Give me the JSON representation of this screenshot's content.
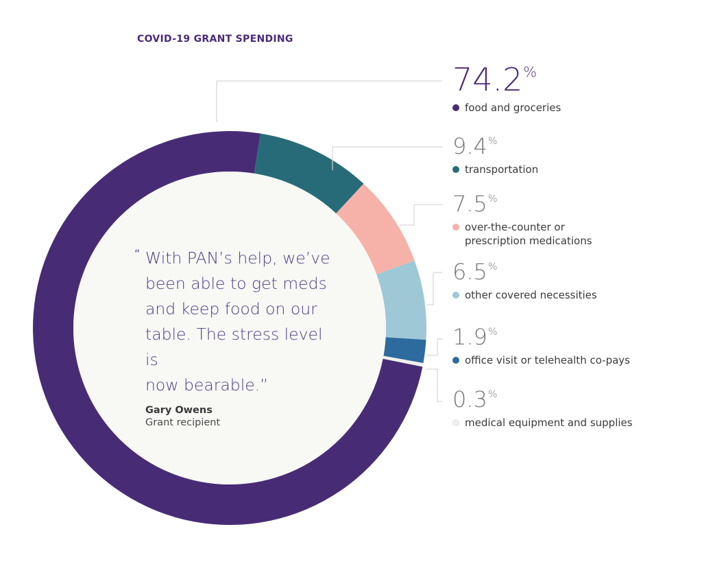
{
  "chart_data": {
    "type": "pie",
    "variant": "donut",
    "title": "COVID-19 GRANT SPENDING",
    "start_angle_deg": 9,
    "direction": "clockwise",
    "slices": [
      {
        "label": "transportation",
        "value": 9.4,
        "pct_text": "9.4",
        "color": "#286b78"
      },
      {
        "label": "over-the-counter or prescription medications",
        "label_lines": [
          "over-the-counter or",
          "prescription medications"
        ],
        "value": 7.5,
        "pct_text": "7.5",
        "color": "#f6b2a8"
      },
      {
        "label": "other covered necessities",
        "value": 6.5,
        "pct_text": "6.5",
        "color": "#9fc8d6"
      },
      {
        "label": "office visit or telehealth co-pays",
        "value": 1.9,
        "pct_text": "1.9",
        "color": "#2d6b9e"
      },
      {
        "label": "medical equipment and supplies",
        "value": 0.3,
        "pct_text": "0.3",
        "color": "#f0f0ee"
      },
      {
        "label": "food and groceries",
        "value": 74.2,
        "pct_text": "74.2",
        "color": "#472c75"
      }
    ],
    "legend_order": [
      "food and groceries",
      "transportation",
      "over-the-counter or prescription medications",
      "other covered necessities",
      "office visit or telehealth co-pays",
      "medical equipment and supplies"
    ],
    "center_fill": "#f8f8f5"
  },
  "quote": {
    "open_mark": "“",
    "lines": [
      "With PAN’s help, we’ve",
      "been able to get meds",
      "and keep food on our",
      "table. The stress level is",
      "now bearable.”"
    ],
    "author": "Gary Owens",
    "role": "Grant recipient"
  },
  "percent_sign": "%"
}
